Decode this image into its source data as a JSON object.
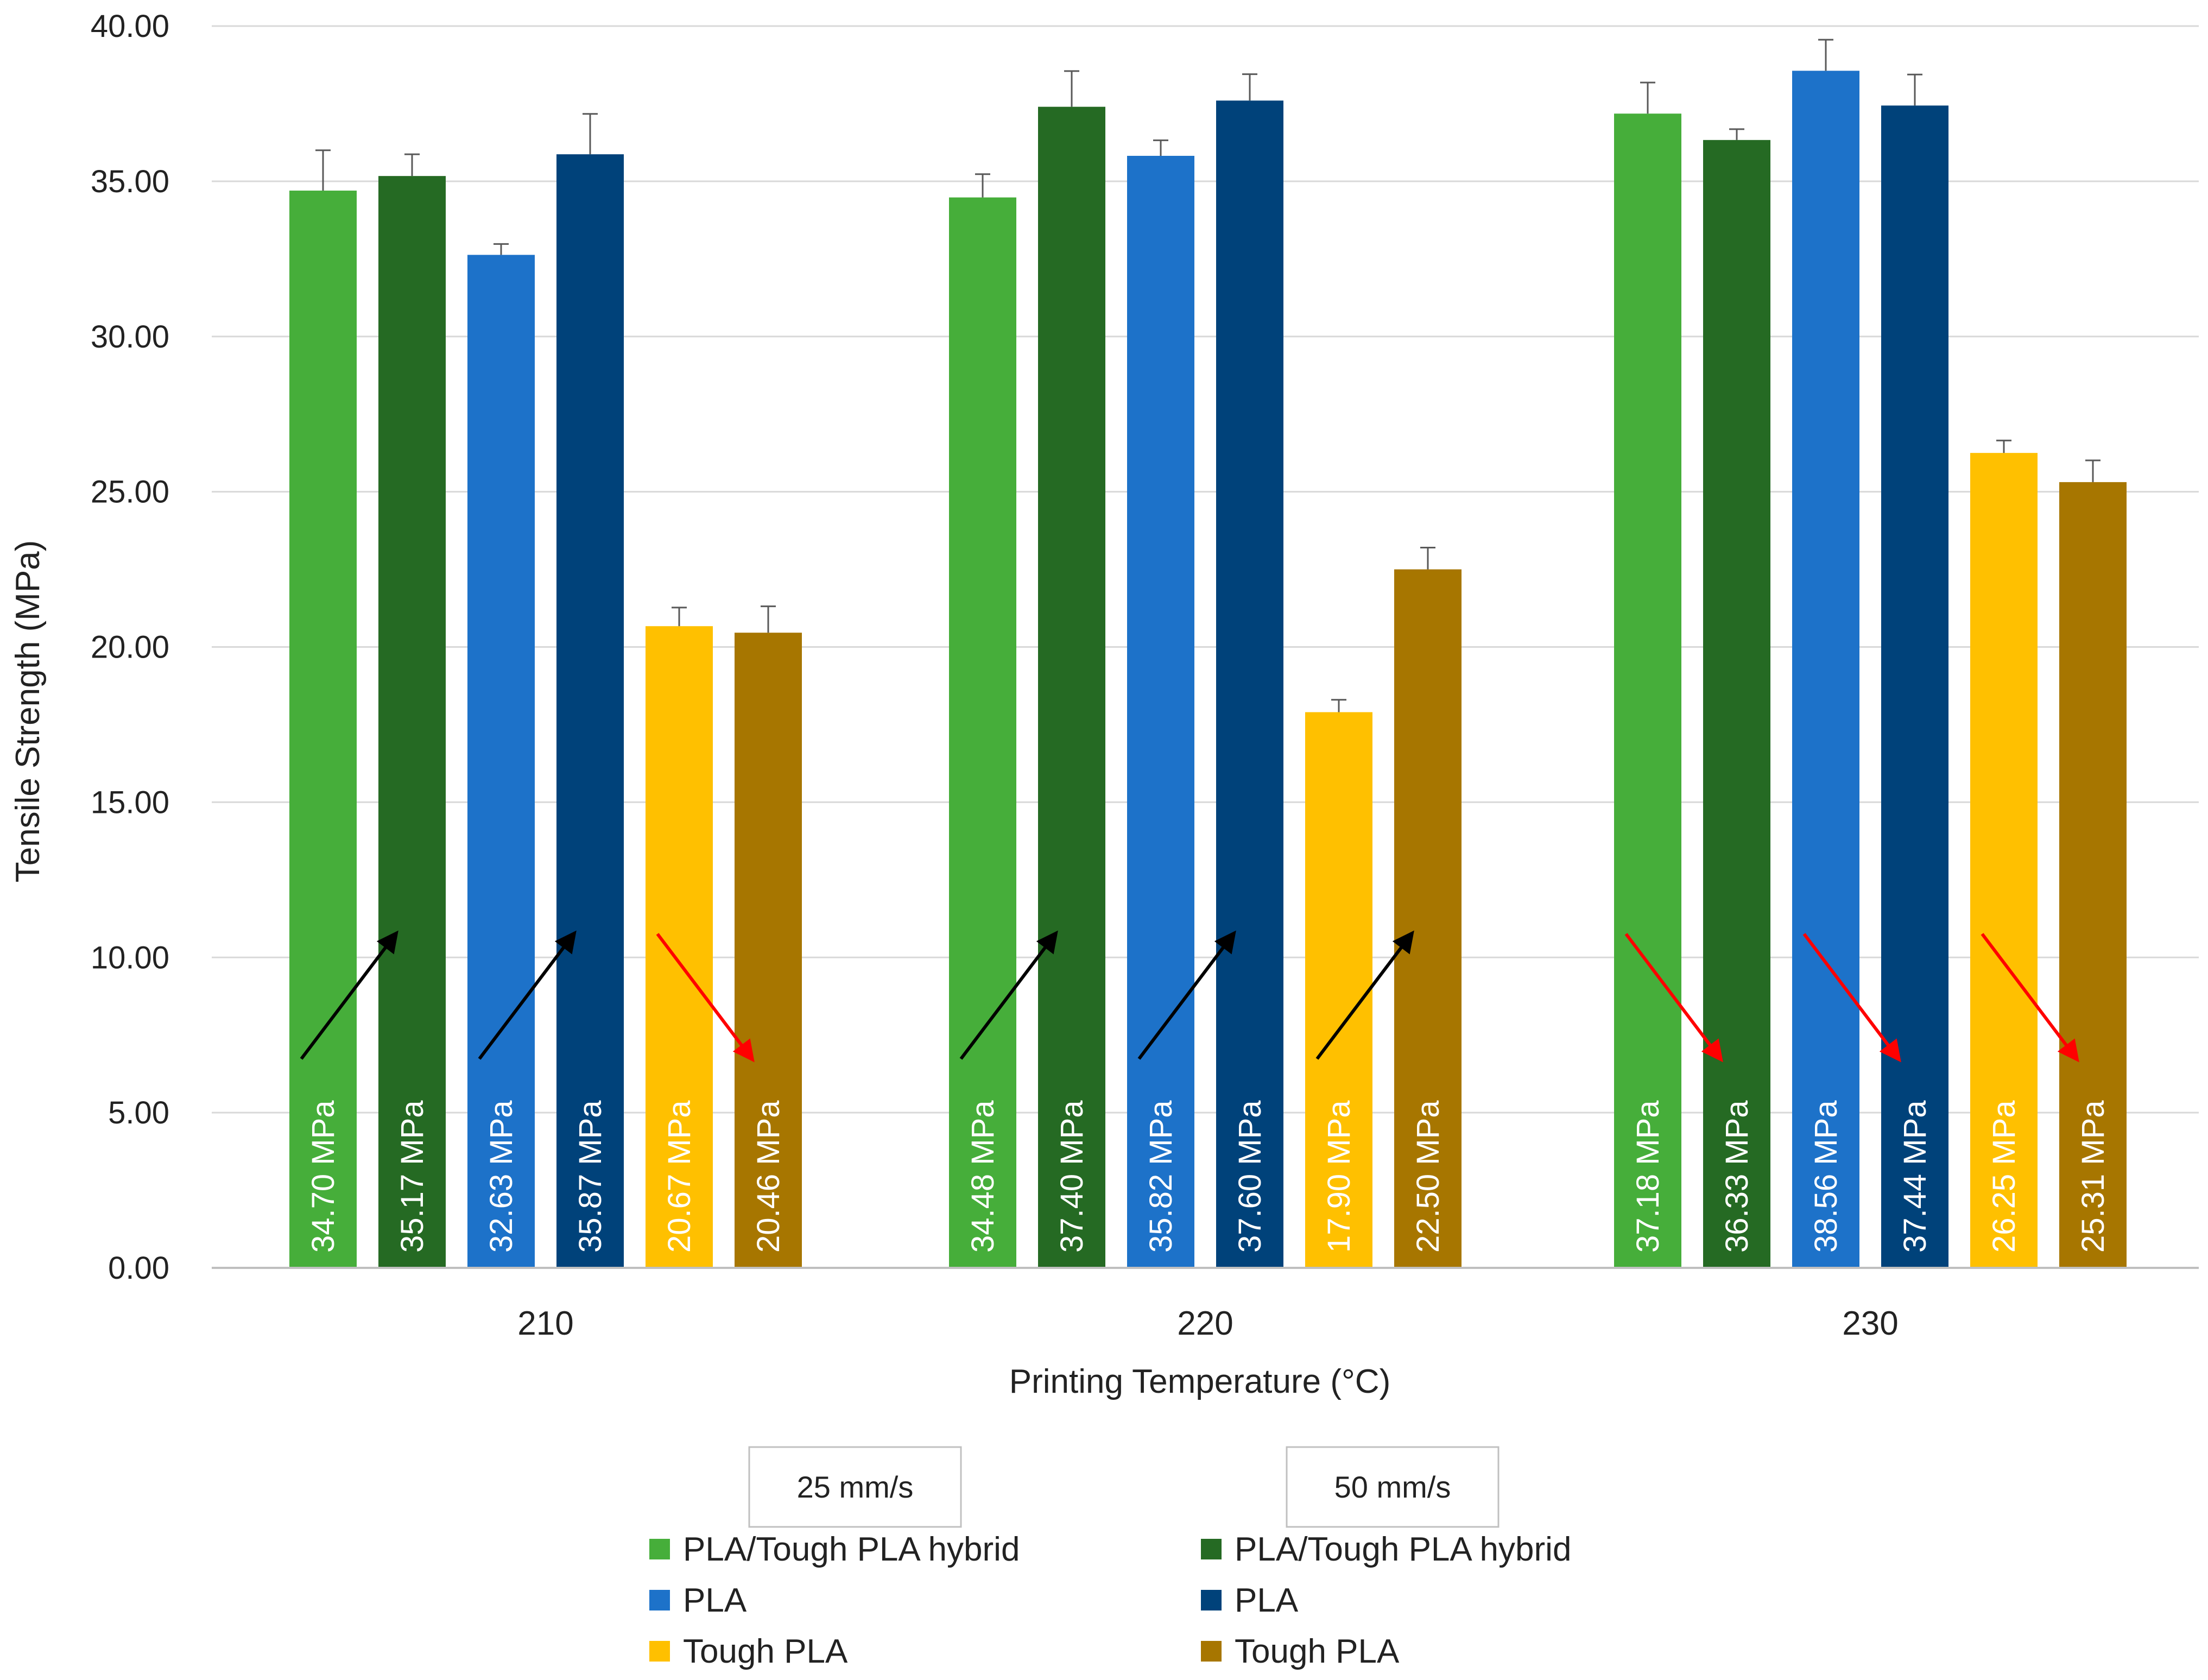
{
  "chart_data": {
    "type": "bar",
    "xlabel": "Printing Temperature (°C)",
    "ylabel": "Tensile Strength (MPa)",
    "ylim": [
      0,
      40
    ],
    "ytick_step": 5,
    "ytick_decimals": 2,
    "grid": true,
    "categories": [
      "210",
      "220",
      "230"
    ],
    "value_label_suffix": " MPa",
    "series": [
      {
        "name": "PLA/Tough PLA hybrid",
        "speed": "25 mm/s",
        "color": "#46AE3A",
        "values": [
          34.7,
          34.48,
          37.18
        ],
        "errors": [
          1.3,
          0.75,
          1.0
        ]
      },
      {
        "name": "PLA/Tough PLA hybrid",
        "speed": "50 mm/s",
        "color": "#256A23",
        "values": [
          35.17,
          37.4,
          36.33
        ],
        "errors": [
          0.7,
          1.15,
          0.35
        ]
      },
      {
        "name": "PLA",
        "speed": "25 mm/s",
        "color": "#1D72C9",
        "values": [
          32.63,
          35.82,
          38.56
        ],
        "errors": [
          0.35,
          0.5,
          1.0
        ]
      },
      {
        "name": "PLA",
        "speed": "50 mm/s",
        "color": "#00427A",
        "values": [
          35.87,
          37.6,
          37.44
        ],
        "errors": [
          1.3,
          0.85,
          1.0
        ]
      },
      {
        "name": "Tough PLA",
        "speed": "25 mm/s",
        "color": "#FFC000",
        "values": [
          20.67,
          17.9,
          26.25
        ],
        "errors": [
          0.6,
          0.4,
          0.4
        ]
      },
      {
        "name": "Tough PLA",
        "speed": "50 mm/s",
        "color": "#A77600",
        "values": [
          20.46,
          22.5,
          25.31
        ],
        "errors": [
          0.85,
          0.7,
          0.7
        ]
      }
    ],
    "trend_arrows": [
      {
        "category": "210",
        "pair": [
          "PLA/Tough PLA hybrid",
          "PLA/Tough PLA hybrid"
        ],
        "from_series": 0,
        "direction": "up",
        "color": "#000000"
      },
      {
        "category": "210",
        "from_series": 2,
        "direction": "up",
        "color": "#000000"
      },
      {
        "category": "210",
        "from_series": 4,
        "direction": "down",
        "color": "#FF0000"
      },
      {
        "category": "220",
        "from_series": 0,
        "direction": "up",
        "color": "#000000"
      },
      {
        "category": "220",
        "from_series": 2,
        "direction": "up",
        "color": "#000000"
      },
      {
        "category": "220",
        "from_series": 4,
        "direction": "up",
        "color": "#000000"
      },
      {
        "category": "230",
        "from_series": 0,
        "direction": "down",
        "color": "#FF0000"
      },
      {
        "category": "230",
        "from_series": 2,
        "direction": "down",
        "color": "#FF0000"
      },
      {
        "category": "230",
        "from_series": 4,
        "direction": "down",
        "color": "#FF0000"
      }
    ],
    "legend": {
      "position": "bottom",
      "groups": [
        {
          "title": "25 mm/s",
          "items": [
            "PLA/Tough PLA hybrid",
            "PLA",
            "Tough PLA"
          ],
          "colors": [
            "#46AE3A",
            "#1D72C9",
            "#FFC000"
          ]
        },
        {
          "title": "50 mm/s",
          "items": [
            "PLA/Tough PLA hybrid",
            "PLA",
            "Tough PLA"
          ],
          "colors": [
            "#256A23",
            "#00427A",
            "#A77600"
          ]
        }
      ]
    }
  }
}
